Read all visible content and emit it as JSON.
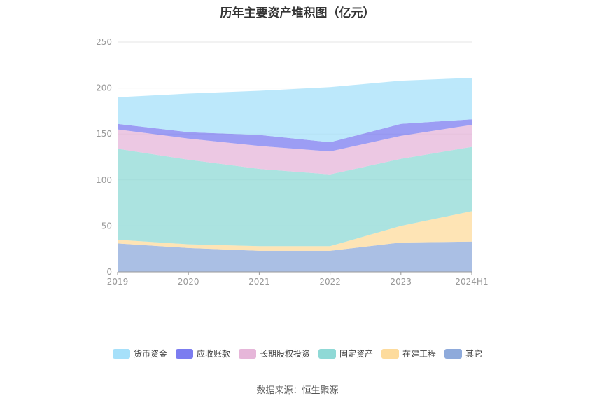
{
  "chart_data": {
    "type": "area",
    "stacked": true,
    "title": "历年主要资产堆积图（亿元）",
    "categories": [
      "2019",
      "2020",
      "2021",
      "2022",
      "2023",
      "2024H1"
    ],
    "ylim": [
      0,
      250
    ],
    "yticks": [
      0,
      50,
      100,
      150,
      200,
      250
    ],
    "grid": true,
    "legend_position": "bottom",
    "series": [
      {
        "name": "其它",
        "color": "#8eaadb",
        "values": [
          31,
          26,
          23,
          23,
          32,
          33
        ]
      },
      {
        "name": "在建工程",
        "color": "#fddb9c",
        "values": [
          4,
          4,
          5,
          5,
          18,
          33
        ]
      },
      {
        "name": "固定资产",
        "color": "#8fd9d6",
        "values": [
          99,
          92,
          84,
          78,
          73,
          70
        ]
      },
      {
        "name": "长期股权投资",
        "color": "#e6b6d9",
        "values": [
          21,
          23,
          25,
          25,
          25,
          24
        ]
      },
      {
        "name": "应收账款",
        "color": "#7b7cf0",
        "values": [
          6,
          7,
          12,
          10,
          13,
          6
        ]
      },
      {
        "name": "货币资金",
        "color": "#a6e0fa",
        "values": [
          29,
          42,
          48,
          60,
          47,
          45
        ]
      }
    ]
  },
  "legend_order": [
    "货币资金",
    "应收账款",
    "长期股权投资",
    "固定资产",
    "在建工程",
    "其它"
  ],
  "source": "数据来源：恒生聚源"
}
